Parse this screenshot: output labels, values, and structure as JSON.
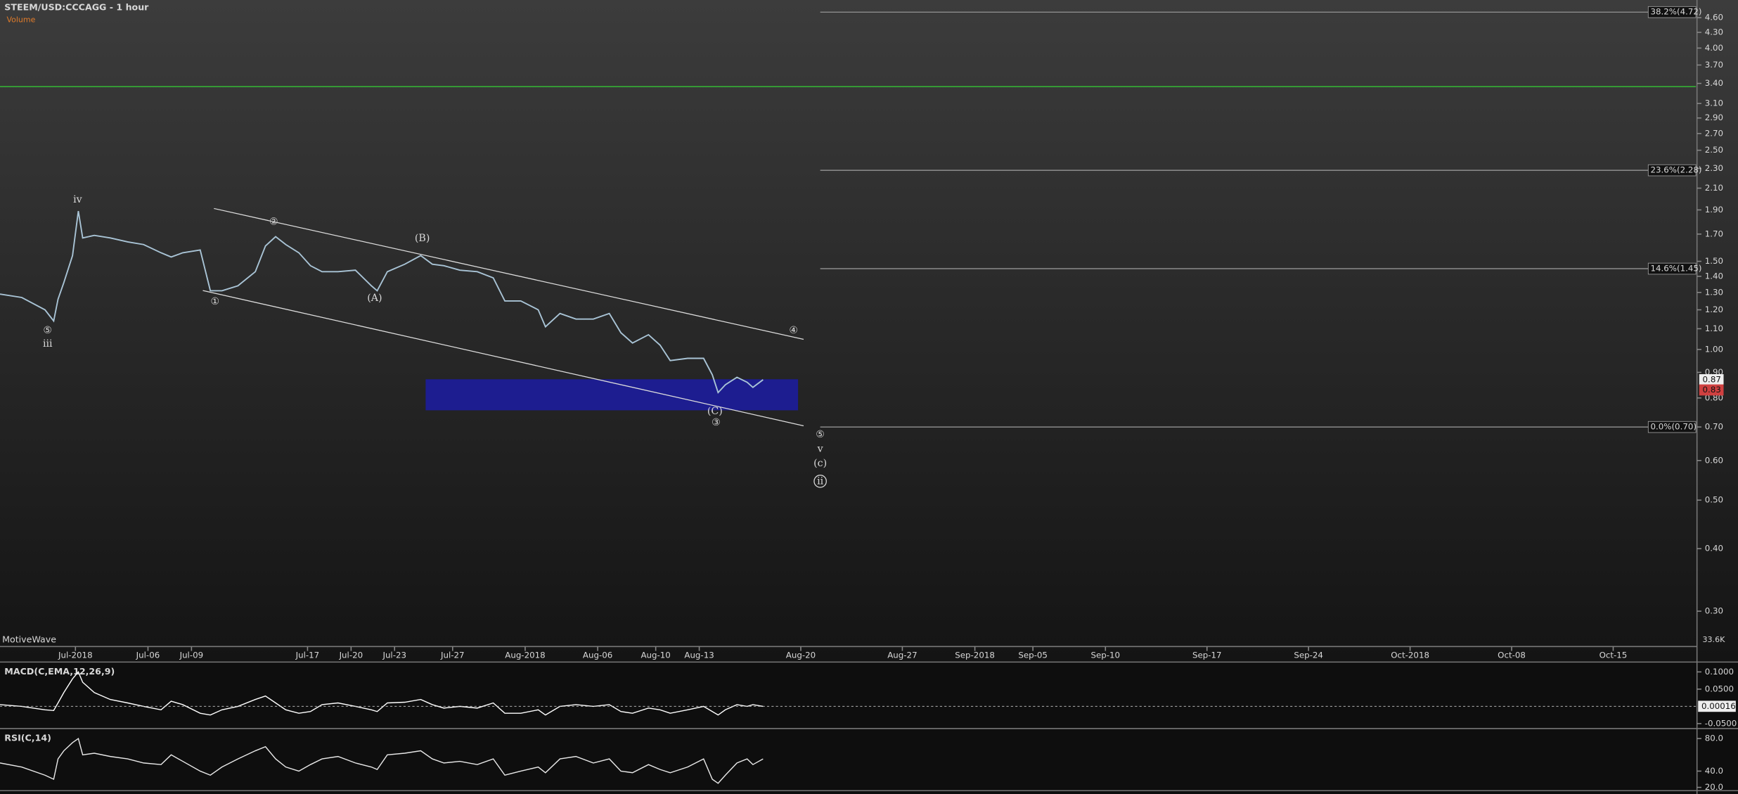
{
  "chart_data": [
    {
      "type": "line",
      "title": "STEEM/USD:CCCAGG - 1 hour",
      "subtitle": "Volume",
      "watermark": "MotiveWave",
      "log_scale": true,
      "color": "#a9c4d6",
      "x": [
        -5.2,
        -3.7,
        -2.1,
        -1.5,
        -1.2,
        -0.8,
        -0.2,
        0.2,
        0.5,
        1.3,
        2.4,
        3.6,
        4.7,
        5.9,
        6.6,
        7.4,
        8.6,
        9.3,
        10.1,
        11.2,
        12.4,
        13.1,
        13.8,
        14.5,
        15.4,
        16.2,
        17.0,
        18.1,
        19.3,
        20.4,
        20.8,
        21.5,
        22.7,
        23.8,
        24.6,
        25.4,
        26.5,
        27.7,
        28.8,
        29.6,
        30.7,
        31.9,
        32.4,
        33.4,
        34.5,
        35.7,
        36.8,
        37.6,
        38.4,
        39.5,
        40.3,
        41.0,
        42.2,
        43.3,
        43.9,
        44.3,
        44.8,
        45.6,
        46.3,
        46.7,
        47.4
      ],
      "values": [
        1.29,
        1.27,
        1.2,
        1.14,
        1.26,
        1.36,
        1.54,
        1.89,
        1.67,
        1.69,
        1.67,
        1.64,
        1.62,
        1.56,
        1.53,
        1.56,
        1.58,
        1.31,
        1.31,
        1.34,
        1.43,
        1.61,
        1.68,
        1.62,
        1.56,
        1.47,
        1.43,
        1.43,
        1.44,
        1.34,
        1.31,
        1.43,
        1.48,
        1.54,
        1.48,
        1.47,
        1.44,
        1.43,
        1.39,
        1.25,
        1.25,
        1.2,
        1.11,
        1.18,
        1.15,
        1.15,
        1.18,
        1.08,
        1.03,
        1.07,
        1.02,
        0.95,
        0.96,
        0.96,
        0.89,
        0.82,
        0.85,
        0.88,
        0.86,
        0.84,
        0.87
      ],
      "xlim": [
        -5.2,
        111.7
      ],
      "xticks": [
        {
          "value": 0,
          "label": "Jul-2018"
        },
        {
          "value": 5,
          "label": "Jul-06"
        },
        {
          "value": 8,
          "label": "Jul-09"
        },
        {
          "value": 16,
          "label": "Jul-17"
        },
        {
          "value": 19,
          "label": "Jul-20"
        },
        {
          "value": 22,
          "label": "Jul-23"
        },
        {
          "value": 26,
          "label": "Jul-27"
        },
        {
          "value": 31,
          "label": "Aug-2018"
        },
        {
          "value": 36,
          "label": "Aug-06"
        },
        {
          "value": 40,
          "label": "Aug-10"
        },
        {
          "value": 43,
          "label": "Aug-13"
        },
        {
          "value": 50,
          "label": "Aug-20"
        },
        {
          "value": 57,
          "label": "Aug-27"
        },
        {
          "value": 62,
          "label": "Sep-2018"
        },
        {
          "value": 66,
          "label": "Sep-05"
        },
        {
          "value": 71,
          "label": "Sep-10"
        },
        {
          "value": 78,
          "label": "Sep-17"
        },
        {
          "value": 85,
          "label": "Sep-24"
        },
        {
          "value": 92,
          "label": "Oct-2018"
        },
        {
          "value": 99,
          "label": "Oct-08"
        },
        {
          "value": 106,
          "label": "Oct-15"
        }
      ],
      "ylim": [
        0.255,
        4.99
      ],
      "yticks": [
        {
          "value": 4.6,
          "label": "4.60"
        },
        {
          "value": 4.3,
          "label": "4.30"
        },
        {
          "value": 4,
          "label": "4.00"
        },
        {
          "value": 3.7,
          "label": "3.70"
        },
        {
          "value": 3.4,
          "label": "3.40"
        },
        {
          "value": 3.1,
          "label": "3.10"
        },
        {
          "value": 2.9,
          "label": "2.90"
        },
        {
          "value": 2.7,
          "label": "2.70"
        },
        {
          "value": 2.5,
          "label": "2.50"
        },
        {
          "value": 2.3,
          "label": "2.30"
        },
        {
          "value": 2.1,
          "label": "2.10"
        },
        {
          "value": 1.9,
          "label": "1.90"
        },
        {
          "value": 1.7,
          "label": "1.70"
        },
        {
          "value": 1.5,
          "label": "1.50"
        },
        {
          "value": 1.4,
          "label": "1.40"
        },
        {
          "value": 1.3,
          "label": "1.30"
        },
        {
          "value": 1.2,
          "label": "1.20"
        },
        {
          "value": 1.1,
          "label": "1.10"
        },
        {
          "value": 1,
          "label": "1.00"
        },
        {
          "value": 0.9,
          "label": "0.90"
        },
        {
          "value": 0.8,
          "label": "0.80"
        },
        {
          "value": 0.7,
          "label": "0.70"
        },
        {
          "value": 0.6,
          "label": "0.60"
        },
        {
          "value": 0.5,
          "label": "0.50"
        },
        {
          "value": 0.4,
          "label": "0.40"
        },
        {
          "value": 0.3,
          "label": "0.30"
        }
      ],
      "horizontal_line": {
        "value": 3.35,
        "color": "#35b035"
      },
      "fib_levels": [
        {
          "label": "38.2%(4.72)",
          "value": 4.72
        },
        {
          "label": "23.6%(2.28)",
          "value": 2.28
        },
        {
          "label": "14.6%(1.45)",
          "value": 1.45
        },
        {
          "label": "0.0%(0.70)",
          "value": 0.7
        }
      ],
      "price_labels": [
        0.87,
        0.83
      ],
      "volume_label": "33.6K",
      "annotations": [
        "iv",
        "⑤",
        "iii",
        "②",
        "①",
        "(B)",
        "(A)",
        "④",
        "(C)",
        "③",
        "⑤",
        "v",
        "(c)",
        "ii"
      ]
    },
    {
      "type": "line",
      "title": "MACD(C,EMA,12,26,9)",
      "color": "#ffffff",
      "x": [
        -5.2,
        -3.7,
        -2.1,
        -1.5,
        -1.2,
        -0.8,
        -0.2,
        0.2,
        0.5,
        1.3,
        2.4,
        3.6,
        4.7,
        5.9,
        6.6,
        7.4,
        8.6,
        9.3,
        10.1,
        11.2,
        12.4,
        13.1,
        13.8,
        14.5,
        15.4,
        16.2,
        17.0,
        18.1,
        19.3,
        20.4,
        20.8,
        21.5,
        22.7,
        23.8,
        24.6,
        25.4,
        26.5,
        27.7,
        28.8,
        29.6,
        30.7,
        31.9,
        32.4,
        33.4,
        34.5,
        35.7,
        36.8,
        37.6,
        38.4,
        39.5,
        40.3,
        41.0,
        42.2,
        43.3,
        43.9,
        44.3,
        44.8,
        45.6,
        46.3,
        46.7,
        47.4
      ],
      "values": [
        0.005,
        0,
        -0.01,
        -0.012,
        0.01,
        0.04,
        0.08,
        0.1,
        0.07,
        0.04,
        0.02,
        0.01,
        0,
        -0.01,
        0.015,
        0.005,
        -0.02,
        -0.025,
        -0.01,
        0,
        0.02,
        0.03,
        0.01,
        -0.01,
        -0.02,
        -0.015,
        0.005,
        0.01,
        0,
        -0.01,
        -0.015,
        0.01,
        0.012,
        0.02,
        0.005,
        -0.005,
        0,
        -0.005,
        0.01,
        -0.02,
        -0.02,
        -0.01,
        -0.025,
        0,
        0.005,
        0,
        0.005,
        -0.015,
        -0.02,
        -0.005,
        -0.01,
        -0.02,
        -0.01,
        0,
        -0.015,
        -0.025,
        -0.01,
        0.005,
        0,
        0.005,
        0
      ],
      "xlim": [
        -5.2,
        111.7
      ],
      "ylim": [
        -0.058,
        0.119
      ],
      "yticks": [
        {
          "value": 0.1,
          "label": "0.1000"
        },
        {
          "value": 0.05,
          "label": "0.0500"
        },
        {
          "value": -0.05,
          "label": "-0.0500"
        }
      ],
      "last_value": 0.00016
    },
    {
      "type": "line",
      "title": "RSI(C,14)",
      "color": "#e8e8e8",
      "x": [
        -5.2,
        -3.7,
        -2.1,
        -1.5,
        -1.2,
        -0.8,
        -0.2,
        0.2,
        0.5,
        1.3,
        2.4,
        3.6,
        4.7,
        5.9,
        6.6,
        7.4,
        8.6,
        9.3,
        10.1,
        11.2,
        12.4,
        13.1,
        13.8,
        14.5,
        15.4,
        16.2,
        17.0,
        18.1,
        19.3,
        20.4,
        20.8,
        21.5,
        22.7,
        23.8,
        24.6,
        25.4,
        26.5,
        27.7,
        28.8,
        29.6,
        30.7,
        31.9,
        32.4,
        33.4,
        34.5,
        35.7,
        36.8,
        37.6,
        38.4,
        39.5,
        40.3,
        41.0,
        42.2,
        43.3,
        43.9,
        44.3,
        44.8,
        45.6,
        46.3,
        46.7,
        47.4
      ],
      "values": [
        50,
        45,
        35,
        30,
        55,
        65,
        75,
        80,
        60,
        62,
        58,
        55,
        50,
        48,
        60,
        52,
        40,
        35,
        45,
        55,
        65,
        70,
        55,
        45,
        40,
        48,
        55,
        58,
        50,
        45,
        42,
        60,
        62,
        65,
        55,
        50,
        52,
        48,
        55,
        35,
        40,
        45,
        38,
        55,
        58,
        50,
        55,
        40,
        38,
        48,
        42,
        38,
        45,
        55,
        30,
        25,
        35,
        50,
        55,
        48,
        55
      ],
      "xlim": [
        -5.2,
        111.7
      ],
      "ylim": [
        17.3,
        88.2
      ],
      "yticks": [
        {
          "value": 80,
          "label": "80.0"
        },
        {
          "value": 40,
          "label": "40.0"
        },
        {
          "value": 20,
          "label": "20.0"
        }
      ]
    }
  ]
}
